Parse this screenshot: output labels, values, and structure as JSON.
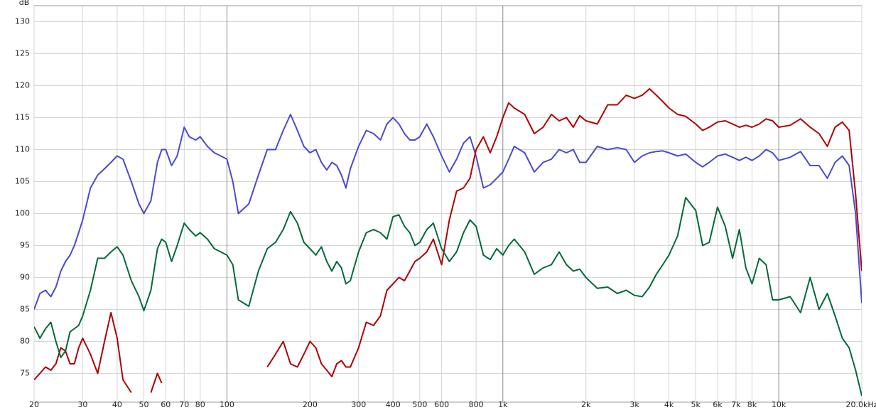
{
  "chart_data": {
    "type": "line",
    "y_label": "dB",
    "log_x": true,
    "grid": true,
    "x": [
      20,
      21,
      22,
      23,
      24,
      25,
      26,
      27,
      28,
      29,
      30,
      32,
      34,
      36,
      38,
      40,
      42,
      45,
      48,
      50,
      53,
      56,
      58,
      60,
      63,
      66,
      70,
      73,
      77,
      80,
      85,
      90,
      95,
      100,
      105,
      110,
      120,
      130,
      140,
      150,
      160,
      170,
      180,
      190,
      200,
      210,
      220,
      230,
      240,
      250,
      260,
      270,
      280,
      300,
      320,
      340,
      360,
      380,
      400,
      420,
      440,
      460,
      480,
      500,
      530,
      560,
      600,
      640,
      680,
      720,
      760,
      800,
      850,
      900,
      950,
      1000,
      1050,
      1100,
      1200,
      1300,
      1400,
      1500,
      1600,
      1700,
      1800,
      1900,
      2000,
      2200,
      2400,
      2600,
      2800,
      3000,
      3200,
      3400,
      3600,
      3800,
      4000,
      4300,
      4600,
      5000,
      5300,
      5600,
      6000,
      6400,
      6800,
      7200,
      7600,
      8000,
      8500,
      9000,
      9500,
      10000,
      11000,
      12000,
      13000,
      14000,
      15000,
      16000,
      17000,
      18000,
      19000,
      20000
    ],
    "series": [
      {
        "color": "#4a4ad0",
        "values": [
          85,
          87.5,
          88,
          87,
          88.5,
          91,
          92.5,
          93.5,
          95,
          97,
          99,
          104,
          106,
          107,
          108,
          109,
          108.5,
          105,
          101.5,
          100,
          102,
          108,
          110,
          110,
          107.5,
          109,
          113.5,
          112,
          111.5,
          112,
          110.5,
          109.5,
          109,
          108.5,
          105,
          100,
          101.5,
          106,
          110,
          110,
          113,
          115.5,
          113,
          110.5,
          109.5,
          110,
          108,
          106.8,
          108,
          107.5,
          106,
          104,
          107,
          110.5,
          113,
          112.5,
          111.5,
          114,
          115,
          114,
          112.5,
          111.5,
          111.5,
          112,
          114,
          112,
          109,
          106.5,
          108.5,
          111,
          112,
          109,
          104,
          104.5,
          105.5,
          106.5,
          108.5,
          110.5,
          109.5,
          106.5,
          108,
          108.5,
          110,
          109.5,
          110,
          108,
          108,
          110.5,
          110,
          110.3,
          110,
          108,
          109,
          109.5,
          109.7,
          109.8,
          109.5,
          109,
          109.3,
          108,
          107.3,
          108,
          109,
          109.3,
          108.8,
          108.3,
          108.8,
          108.3,
          109,
          110,
          109.5,
          108.3,
          108.8,
          109.7,
          107.5,
          107.5,
          105.5,
          108,
          109,
          107.5,
          100,
          86
        ]
      },
      {
        "color": "#b00000",
        "values": [
          74,
          75,
          76,
          75.5,
          76.5,
          79,
          78.5,
          76.5,
          76.5,
          79,
          80.5,
          78,
          75,
          80,
          84.5,
          80.5,
          74,
          72,
          null,
          null,
          72,
          75,
          73.5,
          null,
          null,
          null,
          null,
          null,
          null,
          null,
          null,
          null,
          null,
          null,
          null,
          null,
          null,
          null,
          76,
          78,
          80,
          76.5,
          76,
          78,
          80,
          79,
          76.5,
          75.5,
          74.5,
          76.5,
          77,
          76,
          76,
          79,
          83,
          82.5,
          84,
          88,
          89,
          90,
          89.5,
          91,
          92.5,
          93,
          94,
          96,
          92,
          99,
          103.5,
          104,
          105.5,
          110,
          112,
          109.5,
          112,
          115,
          117.3,
          116.5,
          115.5,
          112.5,
          113.5,
          115.5,
          114.5,
          115,
          113.5,
          115.3,
          114.5,
          114,
          117,
          117,
          118.5,
          118,
          118.5,
          119.5,
          118.5,
          117.5,
          116.5,
          115.5,
          115.2,
          114,
          113,
          113.5,
          114.3,
          114.5,
          114,
          113.5,
          113.8,
          113.5,
          114,
          114.8,
          114.5,
          113.5,
          113.8,
          114.8,
          113.5,
          112.5,
          110.5,
          113.5,
          114.3,
          113,
          103,
          91
        ]
      },
      {
        "color": "#006a3a",
        "values": [
          82.3,
          80.5,
          82,
          83,
          80,
          77.5,
          78.5,
          81.5,
          82,
          82.5,
          84,
          88,
          93,
          93,
          94,
          94.8,
          93.5,
          89.5,
          87,
          84.8,
          88,
          94.5,
          96,
          95.5,
          92.5,
          95,
          98.5,
          97.5,
          96.5,
          97,
          96,
          94.5,
          94,
          93.5,
          92,
          86.5,
          85.5,
          91,
          94.5,
          95.5,
          97.5,
          100.3,
          98.5,
          95.5,
          94.5,
          93.5,
          94.8,
          92.5,
          91,
          92.5,
          91.5,
          89,
          89.5,
          94,
          97,
          97.5,
          97,
          96,
          99.5,
          99.8,
          98,
          97,
          95,
          95.5,
          97.5,
          98.5,
          94.5,
          92.5,
          94,
          97,
          99,
          98,
          93.5,
          92.8,
          94.5,
          93.5,
          95,
          96,
          94,
          90.5,
          91.5,
          92,
          94,
          92,
          91,
          91.3,
          90,
          88.3,
          88.5,
          87.5,
          88,
          87.2,
          87,
          88.5,
          90.5,
          92,
          93.5,
          96.5,
          102.5,
          100.5,
          95,
          95.5,
          101,
          98,
          93,
          97.5,
          91.5,
          89,
          93,
          92,
          86.5,
          86.5,
          87,
          84.5,
          90,
          85,
          87.5,
          84,
          80.5,
          79,
          75.5,
          71.5
        ]
      }
    ],
    "xlim": [
      20,
      20000
    ],
    "xticks": [
      20,
      30,
      40,
      50,
      60,
      70,
      80,
      100,
      200,
      300,
      400,
      500,
      600,
      800,
      {
        "value": 1000,
        "label": "1k"
      },
      {
        "value": 2000,
        "label": "2k"
      },
      {
        "value": 3000,
        "label": "3k"
      },
      {
        "value": 4000,
        "label": "4k"
      },
      {
        "value": 5000,
        "label": "5k"
      },
      {
        "value": 6000,
        "label": "6k"
      },
      {
        "value": 7000,
        "label": "7k"
      },
      {
        "value": 8000,
        "label": "8k"
      },
      {
        "value": 10000,
        "label": "10k"
      },
      {
        "value": 20000,
        "label": "20.0kHz"
      }
    ],
    "ylim": [
      70.5,
      132.5
    ],
    "yticks": [
      75,
      80,
      85,
      90,
      95,
      100,
      105,
      110,
      115,
      120,
      125,
      130
    ]
  }
}
